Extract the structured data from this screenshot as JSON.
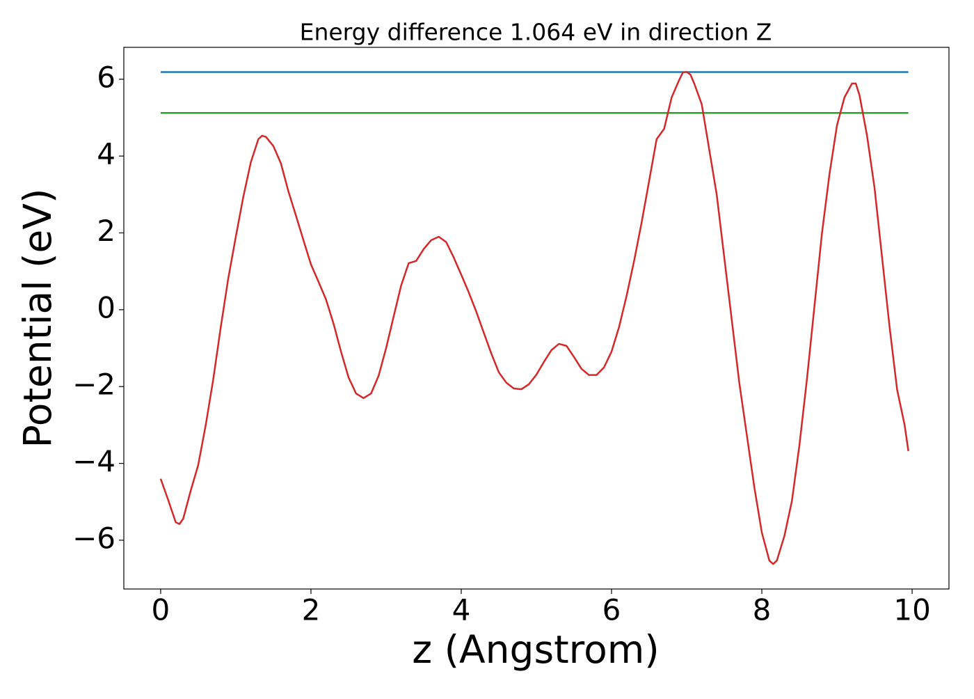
{
  "chart_data": {
    "type": "line",
    "title": "Energy difference 1.064 eV in direction Z",
    "xlabel": "z (Angstrom)",
    "ylabel": "Potential (eV)",
    "xlim": [
      -0.49,
      10.49
    ],
    "ylim": [
      -7.27,
      6.83
    ],
    "xticks": [
      0,
      2,
      4,
      6,
      8,
      10
    ],
    "yticks": [
      {
        "value": -6,
        "label": "−6"
      },
      {
        "value": -4,
        "label": "−4"
      },
      {
        "value": -2,
        "label": "−2"
      },
      0,
      2,
      4,
      6
    ],
    "series": [
      {
        "color": "#1f77b4",
        "x": [
          0,
          9.95
        ],
        "values": [
          6.186,
          6.186
        ]
      },
      {
        "color": "#2ca02c",
        "x": [
          0,
          9.95
        ],
        "values": [
          5.122,
          5.122
        ]
      },
      {
        "color": "#d62728",
        "x": [
          0,
          0.1,
          0.2,
          0.25,
          0.3,
          0.4,
          0.5,
          0.6,
          0.7,
          0.8,
          0.9,
          1.0,
          1.1,
          1.2,
          1.3,
          1.35,
          1.4,
          1.5,
          1.6,
          1.7,
          1.8,
          1.9,
          2.0,
          2.1,
          2.2,
          2.3,
          2.4,
          2.5,
          2.6,
          2.7,
          2.8,
          2.9,
          3.0,
          3.1,
          3.2,
          3.3,
          3.4,
          3.5,
          3.6,
          3.7,
          3.8,
          3.9,
          4.0,
          4.1,
          4.2,
          4.3,
          4.4,
          4.5,
          4.6,
          4.7,
          4.8,
          4.9,
          5.0,
          5.1,
          5.2,
          5.3,
          5.4,
          5.5,
          5.6,
          5.7,
          5.8,
          5.9,
          6.0,
          6.1,
          6.2,
          6.3,
          6.4,
          6.5,
          6.6,
          6.7,
          6.8,
          6.9,
          6.95,
          7.0,
          7.05,
          7.1,
          7.2,
          7.3,
          7.4,
          7.5,
          7.6,
          7.7,
          7.8,
          7.9,
          8.0,
          8.1,
          8.15,
          8.2,
          8.3,
          8.4,
          8.5,
          8.6,
          8.7,
          8.8,
          8.9,
          9.0,
          9.1,
          9.2,
          9.25,
          9.3,
          9.4,
          9.5,
          9.6,
          9.7,
          9.8,
          9.9,
          9.95
        ],
        "values": [
          -4.4,
          -4.95,
          -5.53,
          -5.58,
          -5.44,
          -4.71,
          -4.04,
          -3.0,
          -1.81,
          -0.45,
          0.82,
          1.9,
          2.94,
          3.84,
          4.44,
          4.53,
          4.5,
          4.26,
          3.81,
          3.08,
          2.45,
          1.81,
          1.18,
          0.73,
          0.27,
          -0.36,
          -1.09,
          -1.76,
          -2.18,
          -2.3,
          -2.18,
          -1.72,
          -1.0,
          -0.18,
          0.63,
          1.21,
          1.27,
          1.58,
          1.81,
          1.9,
          1.76,
          1.36,
          0.91,
          0.45,
          -0.05,
          -0.6,
          -1.14,
          -1.63,
          -1.9,
          -2.05,
          -2.07,
          -1.94,
          -1.69,
          -1.36,
          -1.05,
          -0.89,
          -0.94,
          -1.23,
          -1.54,
          -1.7,
          -1.7,
          -1.5,
          -1.09,
          -0.45,
          0.36,
          1.27,
          2.27,
          3.35,
          4.44,
          4.71,
          5.53,
          5.98,
          6.18,
          6.19,
          6.12,
          5.89,
          5.35,
          4.17,
          2.99,
          1.36,
          -0.27,
          -1.9,
          -3.26,
          -4.62,
          -5.8,
          -6.53,
          -6.62,
          -6.53,
          -5.89,
          -4.98,
          -3.53,
          -1.81,
          0.09,
          1.99,
          3.53,
          4.8,
          5.53,
          5.89,
          5.89,
          5.58,
          4.53,
          3.17,
          1.36,
          -0.45,
          -2.08,
          -3.0,
          -3.68
        ]
      }
    ]
  }
}
